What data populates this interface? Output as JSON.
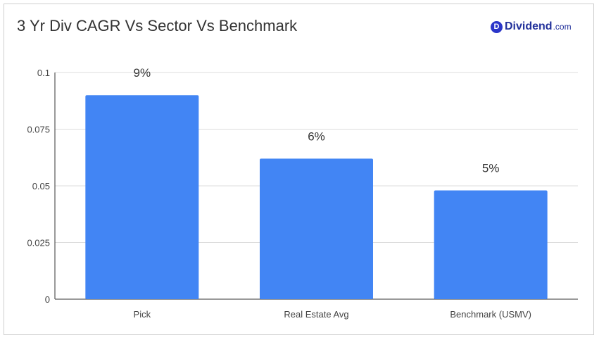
{
  "header": {
    "title": "3 Yr Div CAGR Vs Sector Vs Benchmark",
    "logo_mark": "D",
    "logo_text": "Dividend",
    "logo_suffix": ".com"
  },
  "colors": {
    "bar": "#4285f4",
    "grid": "#dddddd",
    "axis": "#333333",
    "logo": "#22319b"
  },
  "chart_data": {
    "type": "bar",
    "title": "3 Yr Div CAGR Vs Sector Vs Benchmark",
    "categories": [
      "Pick",
      "Real Estate Avg",
      "Benchmark (USMV)"
    ],
    "values": [
      0.09,
      0.062,
      0.048
    ],
    "data_labels": [
      "9%",
      "6%",
      "5%"
    ],
    "ylim": [
      0,
      0.1
    ],
    "yticks": [
      0,
      0.025,
      0.05,
      0.075,
      0.1
    ],
    "ytick_labels": [
      "0",
      "0.025",
      "0.05",
      "0.075",
      "0.1"
    ],
    "xlabel": "",
    "ylabel": "",
    "grid": true,
    "legend": "none"
  }
}
